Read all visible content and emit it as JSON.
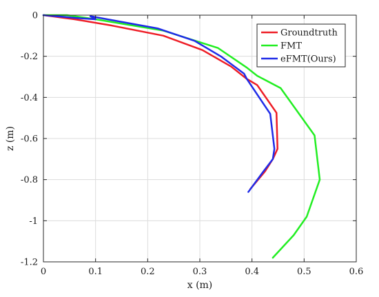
{
  "chart_data": {
    "type": "line",
    "title": "",
    "xlabel": "x (m)",
    "ylabel": "z (m)",
    "xlim": [
      0,
      0.6
    ],
    "ylim": [
      -1.2,
      0
    ],
    "xticks": [
      0,
      0.1,
      0.2,
      0.3,
      0.4,
      0.5,
      0.6
    ],
    "xtick_labels": [
      "0",
      "0.1",
      "0.2",
      "0.3",
      "0.4",
      "0.5",
      "0.6"
    ],
    "yticks": [
      0,
      -0.2,
      -0.4,
      -0.6,
      -0.8,
      -1,
      -1.2
    ],
    "ytick_labels": [
      "0",
      "-0.2",
      "-0.4",
      "-0.6",
      "-0.8",
      "-1",
      "-1.2"
    ],
    "grid": true,
    "legend_position": "top-right",
    "series": [
      {
        "name": "Groundtruth",
        "color": "#ee1c25",
        "x": [
          0,
          0.06,
          0.13,
          0.23,
          0.305,
          0.36,
          0.39,
          0.41,
          0.447,
          0.449,
          0.44,
          0.425,
          0.397
        ],
        "y": [
          0,
          -0.02,
          -0.05,
          -0.1,
          -0.17,
          -0.25,
          -0.31,
          -0.34,
          -0.475,
          -0.65,
          -0.7,
          -0.76,
          -0.845
        ]
      },
      {
        "name": "FMT",
        "color": "#22ee22",
        "x": [
          0,
          0.045,
          0.1,
          0.23,
          0.335,
          0.39,
          0.41,
          0.455,
          0.52,
          0.53,
          0.505,
          0.48,
          0.44
        ],
        "y": [
          0,
          0,
          -0.02,
          -0.075,
          -0.16,
          -0.255,
          -0.295,
          -0.355,
          -0.585,
          -0.8,
          -0.98,
          -1.07,
          -1.18
        ]
      },
      {
        "name": "eFMT(Ours)",
        "color": "#1f2be8",
        "x": [
          0,
          0.07,
          0.1,
          0.09,
          0.22,
          0.29,
          0.34,
          0.385,
          0.39,
          0.435,
          0.443,
          0.44,
          0.422,
          0.393
        ],
        "y": [
          0,
          -0.015,
          -0.02,
          -0.005,
          -0.065,
          -0.125,
          -0.2,
          -0.285,
          -0.31,
          -0.48,
          -0.65,
          -0.7,
          -0.76,
          -0.86
        ]
      }
    ]
  }
}
